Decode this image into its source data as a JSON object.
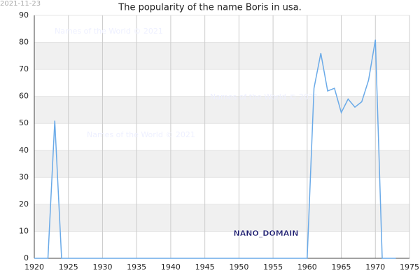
{
  "chart_data": {
    "type": "line",
    "title": "The popularity of the name Boris in usa.",
    "date": "2021-11-23",
    "watermarks": [
      "Names of the World © 2021",
      "Names of the World © 2021",
      "Names of the World © 2021"
    ],
    "annotation": "NANO_DOMAIN",
    "x": [
      1920,
      1921,
      1922,
      1923,
      1924,
      1925,
      1926,
      1927,
      1928,
      1929,
      1930,
      1931,
      1932,
      1933,
      1934,
      1935,
      1936,
      1937,
      1938,
      1939,
      1940,
      1941,
      1942,
      1943,
      1944,
      1945,
      1946,
      1947,
      1948,
      1949,
      1950,
      1951,
      1952,
      1953,
      1954,
      1955,
      1956,
      1957,
      1958,
      1959,
      1960,
      1961,
      1962,
      1963,
      1964,
      1965,
      1966,
      1967,
      1968,
      1969,
      1970,
      1971,
      1972,
      1973
    ],
    "series": [
      {
        "color": "#6aaae8",
        "values": [
          0,
          0,
          0,
          51,
          0,
          0,
          0,
          0,
          0,
          0,
          0,
          0,
          0,
          0,
          0,
          0,
          0,
          0,
          0,
          0,
          0,
          0,
          0,
          0,
          0,
          0,
          0,
          0,
          0,
          0,
          0,
          0,
          0,
          0,
          0,
          0,
          0,
          0,
          0,
          0,
          0,
          63,
          76,
          62,
          63,
          54,
          59,
          56,
          58,
          66,
          81,
          0,
          0,
          0
        ]
      }
    ],
    "xlim": [
      1920,
      1975
    ],
    "xticks": [
      1920,
      1925,
      1930,
      1935,
      1940,
      1945,
      1950,
      1955,
      1960,
      1965,
      1970,
      1975
    ],
    "ylim": [
      0,
      90
    ],
    "yticks": [
      0,
      10,
      20,
      30,
      40,
      50,
      60,
      70,
      80,
      90
    ],
    "grid": true
  }
}
